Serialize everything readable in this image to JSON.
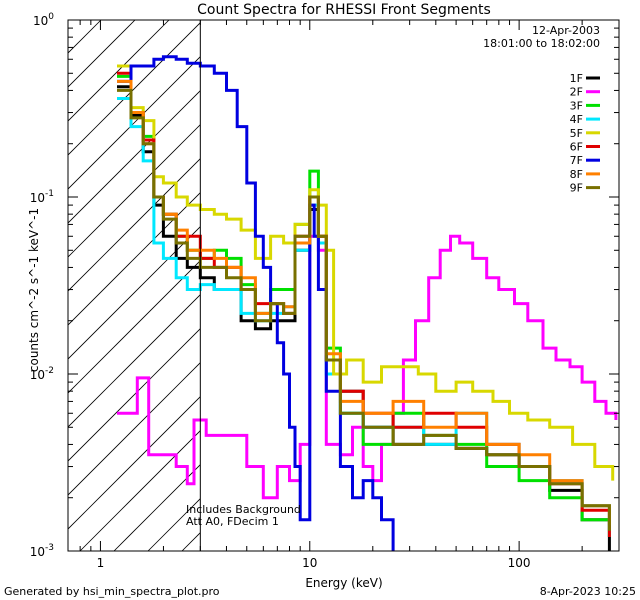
{
  "chart_data": {
    "type": "line",
    "title": "Count Spectra for RHESSI Front Segments",
    "xlabel": "Energy (keV)",
    "ylabel": "counts cm^-2 s^-1 keV^-1",
    "x_scale": "log",
    "y_scale": "log",
    "xlim": [
      0.7,
      300
    ],
    "ylim": [
      0.001,
      1
    ],
    "x_ticks": [
      {
        "value": 1,
        "label": "1"
      },
      {
        "value": 10,
        "label": "10"
      },
      {
        "value": 100,
        "label": "100"
      }
    ],
    "y_ticks": [
      {
        "value": 0.001,
        "label": "10",
        "exp": "-3"
      },
      {
        "value": 0.01,
        "label": "10",
        "exp": "-2"
      },
      {
        "value": 0.1,
        "label": "10",
        "exp": "-1"
      },
      {
        "value": 1,
        "label": "10",
        "exp": "0"
      }
    ],
    "date": "12-Apr-2003",
    "time_range": "18:01:00 to 18:02:00",
    "annotations": [
      "Includes Background",
      "Att A0, FDecim 1"
    ],
    "hatched_region_xmax": 3,
    "footer_left": "Generated by hsi_min_spectra_plot.pro",
    "footer_right": "8-Apr-2023 10:25",
    "series": [
      {
        "name": "1F",
        "color": "#000000",
        "points": [
          [
            1.2,
            0.42
          ],
          [
            1.4,
            0.29
          ],
          [
            1.6,
            0.18
          ],
          [
            1.8,
            0.09
          ],
          [
            2.0,
            0.06
          ],
          [
            2.3,
            0.045
          ],
          [
            2.6,
            0.04
          ],
          [
            3.0,
            0.035
          ],
          [
            3.5,
            0.03
          ],
          [
            4.0,
            0.03
          ],
          [
            4.7,
            0.02
          ],
          [
            5.5,
            0.018
          ],
          [
            6.5,
            0.02
          ],
          [
            7.5,
            0.02
          ],
          [
            8.5,
            0.05
          ],
          [
            10,
            0.085
          ],
          [
            11,
            0.06
          ],
          [
            12,
            0.012
          ],
          [
            14,
            0.008
          ],
          [
            18,
            0.005
          ],
          [
            25,
            0.004
          ],
          [
            35,
            0.004
          ],
          [
            50,
            0.0038
          ],
          [
            70,
            0.0035
          ],
          [
            100,
            0.003
          ],
          [
            140,
            0.0022
          ],
          [
            200,
            0.0015
          ],
          [
            270,
            0.001
          ]
        ]
      },
      {
        "name": "2F",
        "color": "#ff00ff",
        "points": [
          [
            1.2,
            0.006
          ],
          [
            1.4,
            0.006
          ],
          [
            1.5,
            0.0095
          ],
          [
            1.7,
            0.0035
          ],
          [
            2.0,
            0.0035
          ],
          [
            2.3,
            0.003
          ],
          [
            2.6,
            0.0024
          ],
          [
            2.8,
            0.0055
          ],
          [
            3.2,
            0.0045
          ],
          [
            4.0,
            0.0045
          ],
          [
            5.0,
            0.003
          ],
          [
            6.0,
            0.002
          ],
          [
            7.0,
            0.003
          ],
          [
            8.0,
            0.0025
          ],
          [
            9.0,
            0.004
          ],
          [
            10,
            0.06
          ],
          [
            11,
            0.05
          ],
          [
            12,
            0.004
          ],
          [
            14,
            0.0035
          ],
          [
            16,
            0.005
          ],
          [
            18,
            0.003
          ],
          [
            20,
            0.0025
          ],
          [
            22,
            0.004
          ],
          [
            25,
            0.006
          ],
          [
            28,
            0.012
          ],
          [
            32,
            0.02
          ],
          [
            37,
            0.035
          ],
          [
            42,
            0.05
          ],
          [
            47,
            0.06
          ],
          [
            52,
            0.055
          ],
          [
            60,
            0.045
          ],
          [
            70,
            0.035
          ],
          [
            80,
            0.03
          ],
          [
            95,
            0.025
          ],
          [
            110,
            0.02
          ],
          [
            130,
            0.014
          ],
          [
            150,
            0.012
          ],
          [
            175,
            0.011
          ],
          [
            200,
            0.009
          ],
          [
            230,
            0.007
          ],
          [
            260,
            0.006
          ],
          [
            290,
            0.0055
          ]
        ]
      },
      {
        "name": "3F",
        "color": "#00e000",
        "points": [
          [
            1.2,
            0.48
          ],
          [
            1.4,
            0.3
          ],
          [
            1.6,
            0.22
          ],
          [
            1.8,
            0.1
          ],
          [
            2.0,
            0.08
          ],
          [
            2.3,
            0.06
          ],
          [
            2.6,
            0.05
          ],
          [
            3.0,
            0.045
          ],
          [
            3.5,
            0.05
          ],
          [
            4.0,
            0.045
          ],
          [
            4.7,
            0.032
          ],
          [
            5.5,
            0.022
          ],
          [
            6.5,
            0.03
          ],
          [
            7.5,
            0.03
          ],
          [
            8.5,
            0.07
          ],
          [
            10,
            0.14
          ],
          [
            11,
            0.06
          ],
          [
            12,
            0.014
          ],
          [
            14,
            0.006
          ],
          [
            18,
            0.004
          ],
          [
            25,
            0.006
          ],
          [
            35,
            0.0045
          ],
          [
            50,
            0.004
          ],
          [
            70,
            0.003
          ],
          [
            100,
            0.0025
          ],
          [
            140,
            0.002
          ],
          [
            200,
            0.0015
          ],
          [
            270,
            0.0012
          ]
        ]
      },
      {
        "name": "4F",
        "color": "#00e8ff",
        "points": [
          [
            1.2,
            0.36
          ],
          [
            1.4,
            0.25
          ],
          [
            1.6,
            0.16
          ],
          [
            1.8,
            0.055
          ],
          [
            2.0,
            0.045
          ],
          [
            2.3,
            0.035
          ],
          [
            2.6,
            0.03
          ],
          [
            3.0,
            0.032
          ],
          [
            3.5,
            0.03
          ],
          [
            4.0,
            0.03
          ],
          [
            4.7,
            0.022
          ],
          [
            5.5,
            0.02
          ],
          [
            6.5,
            0.022
          ],
          [
            7.5,
            0.024
          ],
          [
            8.5,
            0.05
          ],
          [
            10,
            0.09
          ],
          [
            11,
            0.055
          ],
          [
            12,
            0.01
          ],
          [
            14,
            0.006
          ],
          [
            18,
            0.005
          ],
          [
            25,
            0.005
          ],
          [
            35,
            0.004
          ],
          [
            50,
            0.006
          ],
          [
            70,
            0.004
          ],
          [
            100,
            0.003
          ],
          [
            140,
            0.0025
          ],
          [
            200,
            0.0018
          ],
          [
            270,
            0.0012
          ]
        ]
      },
      {
        "name": "5F",
        "color": "#d8d800",
        "points": [
          [
            1.2,
            0.55
          ],
          [
            1.4,
            0.32
          ],
          [
            1.6,
            0.27
          ],
          [
            1.8,
            0.13
          ],
          [
            2.0,
            0.12
          ],
          [
            2.3,
            0.1
          ],
          [
            2.6,
            0.09
          ],
          [
            3.0,
            0.085
          ],
          [
            3.5,
            0.08
          ],
          [
            4.0,
            0.075
          ],
          [
            4.7,
            0.065
          ],
          [
            5.5,
            0.045
          ],
          [
            6.5,
            0.06
          ],
          [
            7.5,
            0.055
          ],
          [
            8.5,
            0.07
          ],
          [
            10,
            0.11
          ],
          [
            11,
            0.09
          ],
          [
            12,
            0.05
          ],
          [
            13,
            0.01
          ],
          [
            15,
            0.012
          ],
          [
            18,
            0.009
          ],
          [
            22,
            0.011
          ],
          [
            27,
            0.011
          ],
          [
            33,
            0.01
          ],
          [
            40,
            0.008
          ],
          [
            50,
            0.009
          ],
          [
            60,
            0.008
          ],
          [
            75,
            0.007
          ],
          [
            90,
            0.006
          ],
          [
            110,
            0.0055
          ],
          [
            140,
            0.005
          ],
          [
            180,
            0.004
          ],
          [
            230,
            0.003
          ],
          [
            280,
            0.0025
          ]
        ]
      },
      {
        "name": "6F",
        "color": "#e00000",
        "points": [
          [
            1.2,
            0.5
          ],
          [
            1.4,
            0.3
          ],
          [
            1.6,
            0.21
          ],
          [
            1.8,
            0.1
          ],
          [
            2.0,
            0.08
          ],
          [
            2.3,
            0.06
          ],
          [
            2.6,
            0.06
          ],
          [
            3.0,
            0.045
          ],
          [
            3.5,
            0.04
          ],
          [
            4.0,
            0.04
          ],
          [
            4.7,
            0.03
          ],
          [
            5.5,
            0.025
          ],
          [
            6.5,
            0.025
          ],
          [
            7.5,
            0.022
          ],
          [
            8.5,
            0.06
          ],
          [
            10,
            0.1
          ],
          [
            11,
            0.06
          ],
          [
            12,
            0.012
          ],
          [
            14,
            0.008
          ],
          [
            18,
            0.006
          ],
          [
            25,
            0.005
          ],
          [
            35,
            0.006
          ],
          [
            50,
            0.005
          ],
          [
            70,
            0.004
          ],
          [
            100,
            0.003
          ],
          [
            140,
            0.0024
          ],
          [
            200,
            0.0017
          ],
          [
            270,
            0.0012
          ]
        ]
      },
      {
        "name": "7F",
        "color": "#0000e0",
        "points": [
          [
            1.2,
            0.45
          ],
          [
            1.4,
            0.55
          ],
          [
            1.6,
            0.55
          ],
          [
            1.8,
            0.6
          ],
          [
            2.0,
            0.62
          ],
          [
            2.3,
            0.6
          ],
          [
            2.6,
            0.57
          ],
          [
            3.0,
            0.55
          ],
          [
            3.5,
            0.5
          ],
          [
            4.0,
            0.4
          ],
          [
            4.5,
            0.25
          ],
          [
            5.0,
            0.12
          ],
          [
            5.5,
            0.06
          ],
          [
            6.0,
            0.04
          ],
          [
            6.5,
            0.025
          ],
          [
            7.0,
            0.015
          ],
          [
            7.5,
            0.01
          ],
          [
            8.0,
            0.005
          ],
          [
            8.5,
            0.003
          ],
          [
            9.0,
            0.0015
          ],
          [
            10,
            0.09
          ],
          [
            10.5,
            0.06
          ],
          [
            11,
            0.03
          ],
          [
            12,
            0.008
          ],
          [
            14,
            0.003
          ],
          [
            16,
            0.002
          ],
          [
            18,
            0.0025
          ],
          [
            20,
            0.002
          ],
          [
            22,
            0.0015
          ],
          [
            25,
            0.001
          ]
        ]
      },
      {
        "name": "8F",
        "color": "#ff8000",
        "points": [
          [
            1.2,
            0.45
          ],
          [
            1.4,
            0.3
          ],
          [
            1.6,
            0.2
          ],
          [
            1.8,
            0.1
          ],
          [
            2.0,
            0.08
          ],
          [
            2.3,
            0.065
          ],
          [
            2.6,
            0.05
          ],
          [
            3.0,
            0.05
          ],
          [
            3.5,
            0.045
          ],
          [
            4.0,
            0.04
          ],
          [
            4.7,
            0.035
          ],
          [
            5.5,
            0.022
          ],
          [
            6.5,
            0.025
          ],
          [
            7.5,
            0.024
          ],
          [
            8.5,
            0.055
          ],
          [
            10,
            0.1
          ],
          [
            11,
            0.06
          ],
          [
            12,
            0.013
          ],
          [
            14,
            0.007
          ],
          [
            18,
            0.006
          ],
          [
            25,
            0.007
          ],
          [
            35,
            0.005
          ],
          [
            50,
            0.006
          ],
          [
            70,
            0.004
          ],
          [
            100,
            0.0035
          ],
          [
            140,
            0.0025
          ],
          [
            200,
            0.0018
          ],
          [
            270,
            0.0014
          ]
        ]
      },
      {
        "name": "9F",
        "color": "#787000",
        "points": [
          [
            1.2,
            0.4
          ],
          [
            1.4,
            0.28
          ],
          [
            1.6,
            0.2
          ],
          [
            1.8,
            0.1
          ],
          [
            2.0,
            0.075
          ],
          [
            2.3,
            0.055
          ],
          [
            2.6,
            0.045
          ],
          [
            3.0,
            0.04
          ],
          [
            3.5,
            0.04
          ],
          [
            4.0,
            0.035
          ],
          [
            4.7,
            0.03
          ],
          [
            5.5,
            0.02
          ],
          [
            6.5,
            0.025
          ],
          [
            7.5,
            0.022
          ],
          [
            8.5,
            0.06
          ],
          [
            10,
            0.1
          ],
          [
            11,
            0.06
          ],
          [
            12,
            0.012
          ],
          [
            14,
            0.006
          ],
          [
            18,
            0.005
          ],
          [
            25,
            0.004
          ],
          [
            35,
            0.0045
          ],
          [
            50,
            0.0038
          ],
          [
            70,
            0.0035
          ],
          [
            100,
            0.003
          ],
          [
            140,
            0.0024
          ],
          [
            200,
            0.0018
          ],
          [
            270,
            0.0013
          ]
        ]
      }
    ]
  }
}
